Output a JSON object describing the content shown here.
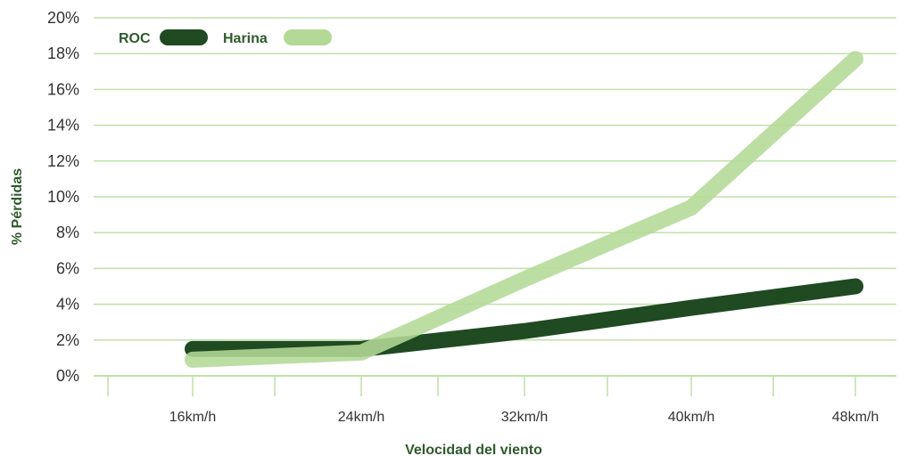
{
  "colors": {
    "grid": "#bfe0a8",
    "roc": "#1f4a22",
    "harina": "#b4d996",
    "title": "#2f5a2c"
  },
  "chart_data": {
    "type": "line",
    "categories": [
      "16km/h",
      "24km/h",
      "32km/h",
      "40km/h",
      "48km/h"
    ],
    "ylabel": "% Pérdidas",
    "xlabel": "Velocidad del viento",
    "ylim": [
      0,
      20
    ],
    "y_ticks": [
      "0%",
      "2%",
      "4%",
      "6%",
      "8%",
      "10%",
      "12%",
      "14%",
      "16%",
      "18%",
      "20%"
    ],
    "grid": true,
    "legend_position": "top-left",
    "series": [
      {
        "name": "ROC",
        "values": [
          1.5,
          1.5,
          2.5,
          3.8,
          5.0
        ],
        "color": "#1f4a22"
      },
      {
        "name": "Harina",
        "values": [
          0.9,
          1.3,
          5.4,
          9.4,
          17.7
        ],
        "color": "#b4d996"
      }
    ]
  }
}
